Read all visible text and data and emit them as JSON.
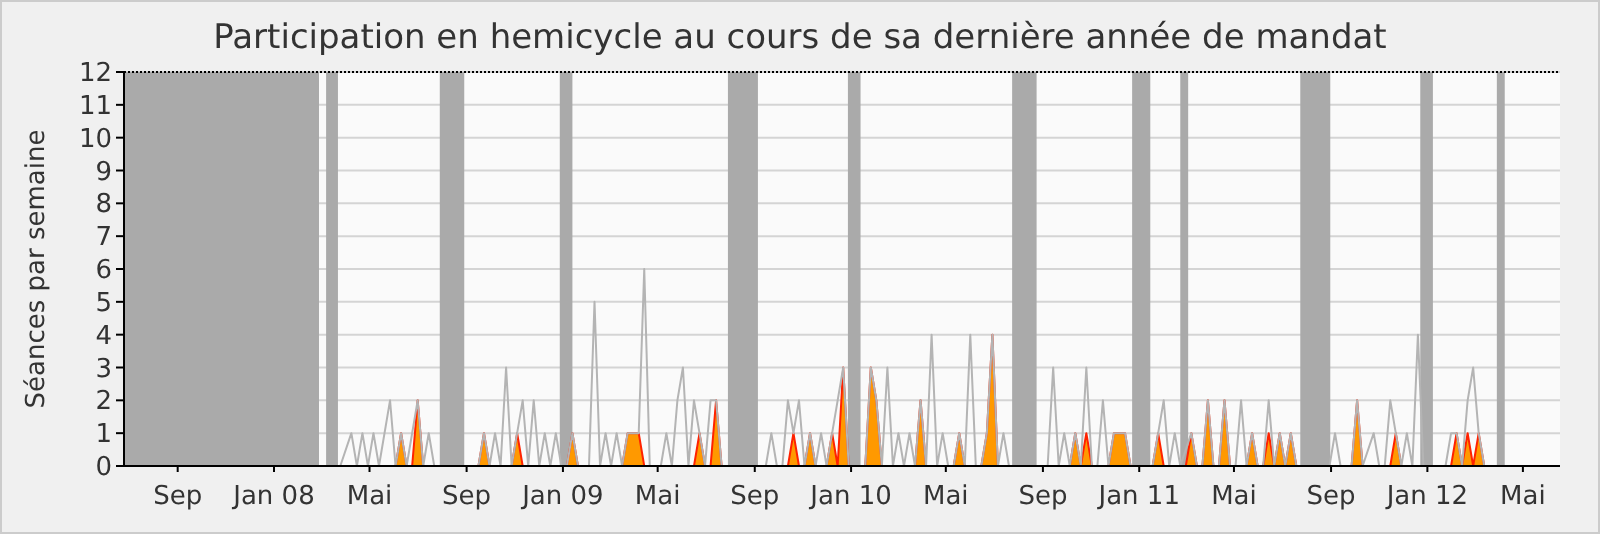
{
  "chart_data": {
    "type": "line",
    "title": "Participation en hemicycle au cours de sa dernière année de mandat",
    "ylabel": "Séances par semaine",
    "xlim": [
      "2007-06-25",
      "2012-06-17"
    ],
    "xticks": [
      {
        "value": "2007-09-01",
        "label": "Sep"
      },
      {
        "value": "2008-01-01",
        "label": "Jan 08"
      },
      {
        "value": "2008-05-01",
        "label": "Mai"
      },
      {
        "value": "2008-09-01",
        "label": "Sep"
      },
      {
        "value": "2009-01-01",
        "label": "Jan 09"
      },
      {
        "value": "2009-05-01",
        "label": "Mai"
      },
      {
        "value": "2009-09-01",
        "label": "Sep"
      },
      {
        "value": "2010-01-01",
        "label": "Jan 10"
      },
      {
        "value": "2010-05-01",
        "label": "Mai"
      },
      {
        "value": "2010-09-01",
        "label": "Sep"
      },
      {
        "value": "2011-01-01",
        "label": "Jan 11"
      },
      {
        "value": "2011-05-01",
        "label": "Mai"
      },
      {
        "value": "2011-09-01",
        "label": "Sep"
      },
      {
        "value": "2012-01-01",
        "label": "Jan 12"
      },
      {
        "value": "2012-05-01",
        "label": "Mai"
      }
    ],
    "ylim": [
      0,
      12
    ],
    "yticks": [
      0,
      1,
      2,
      3,
      4,
      5,
      6,
      7,
      8,
      9,
      10,
      11,
      12
    ],
    "grid": "y",
    "bands": [
      {
        "axis": "x",
        "from": "2007-06-25",
        "to": "2008-02-27",
        "color": "#aaaaaa"
      },
      {
        "axis": "x",
        "from": "2008-03-07",
        "to": "2008-03-22",
        "color": "#aaaaaa"
      },
      {
        "axis": "x",
        "from": "2008-07-29",
        "to": "2008-08-29",
        "color": "#aaaaaa"
      },
      {
        "axis": "x",
        "from": "2008-12-28",
        "to": "2009-01-13",
        "color": "#aaaaaa"
      },
      {
        "axis": "x",
        "from": "2009-07-29",
        "to": "2009-09-05",
        "color": "#aaaaaa"
      },
      {
        "axis": "x",
        "from": "2009-12-28",
        "to": "2010-01-13",
        "color": "#aaaaaa"
      },
      {
        "axis": "x",
        "from": "2010-07-24",
        "to": "2010-08-24",
        "color": "#aaaaaa"
      },
      {
        "axis": "x",
        "from": "2010-12-23",
        "to": "2011-01-15",
        "color": "#aaaaaa"
      },
      {
        "axis": "x",
        "from": "2011-02-22",
        "to": "2011-03-04",
        "color": "#aaaaaa"
      },
      {
        "axis": "x",
        "from": "2011-07-24",
        "to": "2011-08-31",
        "color": "#aaaaaa"
      },
      {
        "axis": "x",
        "from": "2011-12-23",
        "to": "2012-01-08",
        "color": "#aaaaaa"
      },
      {
        "axis": "x",
        "from": "2012-03-29",
        "to": "2012-04-08",
        "color": "#aaaaaa"
      }
    ],
    "series": [
      {
        "color": "#b4b4b4",
        "x": [
          "2008-03-25",
          "2008-04-08",
          "2008-04-15",
          "2008-04-22",
          "2008-04-29",
          "2008-05-06",
          "2008-05-13",
          "2008-05-27",
          "2008-06-03",
          "2008-06-10",
          "2008-06-17",
          "2008-07-01",
          "2008-07-08",
          "2008-07-15",
          "2008-07-22",
          "2008-09-16",
          "2008-09-23",
          "2008-09-30",
          "2008-10-07",
          "2008-10-14",
          "2008-10-21",
          "2008-10-28",
          "2008-11-04",
          "2008-11-11",
          "2008-11-18",
          "2008-11-25",
          "2008-12-02",
          "2008-12-09",
          "2008-12-16",
          "2008-12-23",
          "2008-12-30",
          "2009-01-06",
          "2009-01-13",
          "2009-01-20",
          "2009-02-03",
          "2009-02-10",
          "2009-02-17",
          "2009-02-24",
          "2009-03-03",
          "2009-03-10",
          "2009-03-17",
          "2009-03-24",
          "2009-03-31",
          "2009-04-07",
          "2009-04-14",
          "2009-04-21",
          "2009-05-05",
          "2009-05-12",
          "2009-05-19",
          "2009-05-26",
          "2009-06-02",
          "2009-06-09",
          "2009-06-16",
          "2009-06-23",
          "2009-06-30",
          "2009-07-07",
          "2009-07-14",
          "2009-07-21",
          "2009-09-15",
          "2009-09-22",
          "2009-09-29",
          "2009-10-06",
          "2009-10-13",
          "2009-10-20",
          "2009-10-27",
          "2009-11-03",
          "2009-11-10",
          "2009-11-17",
          "2009-11-24",
          "2009-12-01",
          "2009-12-08",
          "2009-12-15",
          "2009-12-22",
          "2009-12-29",
          "2010-01-19",
          "2010-01-26",
          "2010-02-02",
          "2010-02-09",
          "2010-02-16",
          "2010-02-23",
          "2010-03-02",
          "2010-03-09",
          "2010-03-16",
          "2010-03-23",
          "2010-03-30",
          "2010-04-06",
          "2010-04-13",
          "2010-04-20",
          "2010-04-27",
          "2010-05-04",
          "2010-05-11",
          "2010-05-18",
          "2010-05-25",
          "2010-06-01",
          "2010-06-08",
          "2010-06-15",
          "2010-06-22",
          "2010-06-29",
          "2010-07-06",
          "2010-07-13",
          "2010-07-20",
          "2010-09-07",
          "2010-09-14",
          "2010-09-21",
          "2010-09-28",
          "2010-10-05",
          "2010-10-12",
          "2010-10-19",
          "2010-10-26",
          "2010-11-02",
          "2010-11-09",
          "2010-11-16",
          "2010-11-23",
          "2010-11-30",
          "2010-12-07",
          "2010-12-14",
          "2010-12-21",
          "2011-01-18",
          "2011-01-25",
          "2011-02-01",
          "2011-02-08",
          "2011-02-15",
          "2011-02-22",
          "2011-03-08",
          "2011-03-15",
          "2011-03-22",
          "2011-03-29",
          "2011-04-05",
          "2011-04-12",
          "2011-04-19",
          "2011-04-26",
          "2011-05-03",
          "2011-05-10",
          "2011-05-17",
          "2011-05-24",
          "2011-05-31",
          "2011-06-07",
          "2011-06-14",
          "2011-06-21",
          "2011-06-28",
          "2011-07-05",
          "2011-07-12",
          "2011-07-19",
          "2011-08-30",
          "2011-09-06",
          "2011-09-13",
          "2011-09-27",
          "2011-10-04",
          "2011-10-11",
          "2011-10-25",
          "2011-11-01",
          "2011-11-08",
          "2011-11-15",
          "2011-11-22",
          "2011-11-29",
          "2011-12-06",
          "2011-12-13",
          "2011-12-20",
          "2011-12-27",
          "2012-01-24",
          "2012-01-31",
          "2012-02-07",
          "2012-02-14",
          "2012-02-21",
          "2012-02-28",
          "2012-03-06",
          "2012-03-13"
        ],
        "values": [
          0,
          1,
          0,
          1,
          0,
          1,
          0,
          2,
          0,
          1,
          0,
          2,
          0,
          1,
          0,
          0,
          1,
          0,
          1,
          0,
          3,
          0,
          1,
          2,
          0,
          2,
          0,
          1,
          0,
          1,
          0,
          0,
          1,
          0,
          0,
          5,
          0,
          1,
          0,
          1,
          0,
          1,
          1,
          1,
          6,
          0,
          0,
          1,
          0,
          2,
          3,
          0,
          2,
          1,
          0,
          2,
          2,
          0,
          0,
          1,
          0,
          0,
          2,
          1,
          2,
          0,
          1,
          0,
          1,
          0,
          1,
          2,
          3,
          0,
          0,
          3,
          2,
          0,
          3,
          0,
          1,
          0,
          1,
          0,
          2,
          0,
          4,
          0,
          1,
          0,
          0,
          1,
          0,
          4,
          0,
          0,
          1,
          4,
          0,
          1,
          0,
          0,
          3,
          0,
          1,
          0,
          1,
          0,
          3,
          0,
          0,
          2,
          0,
          1,
          1,
          1,
          0,
          0,
          1,
          2,
          0,
          1,
          0,
          1,
          0,
          0,
          2,
          0,
          0,
          2,
          0,
          0,
          2,
          0,
          1,
          0,
          0,
          2,
          0,
          1,
          0,
          1,
          0,
          0,
          1,
          0,
          0,
          2,
          0,
          1,
          0,
          0,
          2,
          1,
          0,
          1,
          0,
          4,
          0,
          0,
          1,
          1,
          0,
          2,
          3,
          1,
          0
        ]
      },
      {
        "type": "area",
        "color": "#ff9900",
        "x": [
          "2008-06-03",
          "2008-06-10",
          "2008-06-17",
          "2008-06-24",
          "2008-07-01",
          "2008-07-08",
          "2008-09-16",
          "2008-09-23",
          "2008-09-30",
          "2008-10-28",
          "2008-11-04",
          "2008-11-11",
          "2009-01-06",
          "2009-01-13",
          "2009-01-20",
          "2009-03-17",
          "2009-03-24",
          "2009-03-31",
          "2009-04-07",
          "2009-04-14",
          "2009-06-16",
          "2009-06-23",
          "2009-06-30",
          "2009-07-07",
          "2009-07-14",
          "2009-07-21",
          "2009-10-13",
          "2009-10-20",
          "2009-10-27",
          "2009-11-03",
          "2009-11-10",
          "2009-11-17",
          "2009-12-01",
          "2009-12-08",
          "2009-12-15",
          "2009-12-22",
          "2009-12-29",
          "2010-01-19",
          "2010-01-26",
          "2010-02-02",
          "2010-02-09",
          "2010-03-23",
          "2010-03-30",
          "2010-04-06",
          "2010-05-11",
          "2010-05-18",
          "2010-05-25",
          "2010-06-15",
          "2010-06-22",
          "2010-06-29",
          "2010-07-06",
          "2010-10-05",
          "2010-10-12",
          "2010-10-19",
          "2010-10-26",
          "2010-11-02",
          "2010-11-23",
          "2010-11-30",
          "2010-12-07",
          "2010-12-14",
          "2010-12-21",
          "2011-01-18",
          "2011-01-25",
          "2011-02-01",
          "2011-03-01",
          "2011-03-08",
          "2011-03-15",
          "2011-03-22",
          "2011-03-29",
          "2011-04-05",
          "2011-04-12",
          "2011-04-19",
          "2011-04-26",
          "2011-05-17",
          "2011-05-24",
          "2011-05-31",
          "2011-06-07",
          "2011-06-14",
          "2011-06-21",
          "2011-06-28",
          "2011-07-05",
          "2011-07-12",
          "2011-07-19",
          "2011-09-27",
          "2011-10-04",
          "2011-10-11",
          "2011-11-15",
          "2011-11-22",
          "2011-11-29",
          "2012-01-31",
          "2012-02-07",
          "2012-02-14",
          "2012-02-21",
          "2012-02-28",
          "2012-03-06",
          "2012-03-13"
        ],
        "values": [
          0,
          1,
          0,
          0,
          2,
          0,
          0,
          1,
          0,
          0,
          1,
          0,
          0,
          1,
          0,
          0,
          1,
          1,
          1,
          0,
          0,
          1,
          0,
          0,
          2,
          0,
          0,
          1,
          0,
          0,
          1,
          0,
          0,
          1,
          0,
          3,
          0,
          0,
          3,
          2,
          0,
          0,
          2,
          0,
          0,
          1,
          0,
          0,
          1,
          4,
          0,
          0,
          1,
          0,
          1,
          0,
          0,
          1,
          1,
          1,
          0,
          0,
          1,
          0,
          0,
          1,
          0,
          0,
          2,
          0,
          0,
          2,
          0,
          0,
          1,
          0,
          0,
          1,
          0,
          1,
          0,
          1,
          0,
          0,
          2,
          0,
          0,
          1,
          0,
          0,
          1,
          0,
          1,
          0,
          1,
          0
        ]
      }
    ]
  }
}
